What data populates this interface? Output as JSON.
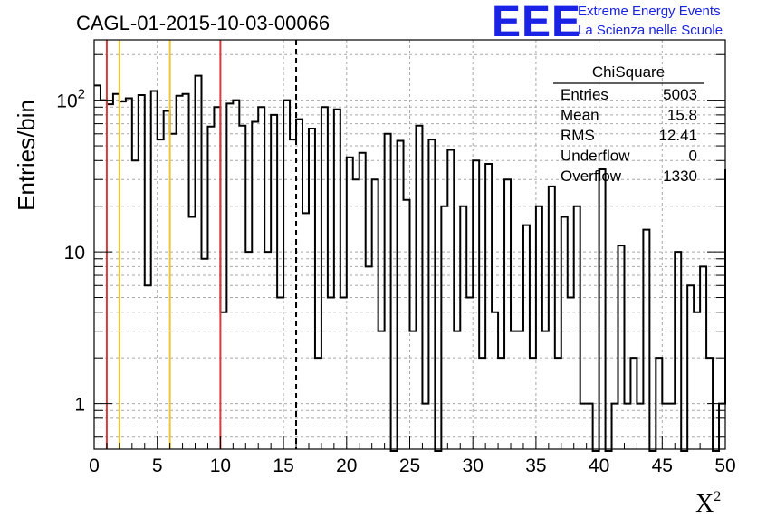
{
  "header": {
    "title": "CAGL-01-2015-10-03-00066",
    "logo_text": "EEE",
    "logo_line1": "Extreme Energy Events",
    "logo_line2": "La Scienza nelle Scuole"
  },
  "stats_box": {
    "name": "ChiSquare",
    "rows": [
      {
        "label": "Entries",
        "value": "5003"
      },
      {
        "label": "Mean",
        "value": "15.8"
      },
      {
        "label": "RMS",
        "value": "12.41"
      },
      {
        "label": "Underflow",
        "value": "0"
      },
      {
        "label": "Overflow",
        "value": "1330"
      }
    ]
  },
  "chart_data": {
    "type": "histogram",
    "title": "CAGL-01-2015-10-03-00066",
    "xlabel": "X",
    "xlabel_superscript": "2",
    "ylabel": "Entries/bin",
    "xlim": [
      0,
      50
    ],
    "ylim": [
      0.5,
      250
    ],
    "yscale": "log",
    "grid": true,
    "bin_width": 0.5,
    "x_ticks": [
      "0",
      "5",
      "10",
      "15",
      "20",
      "25",
      "30",
      "35",
      "40",
      "45",
      "50"
    ],
    "y_ticks": [
      {
        "value": 1,
        "label": "1"
      },
      {
        "value": 10,
        "label": "10"
      },
      {
        "value": 100,
        "label": "10",
        "sup": "2"
      }
    ],
    "counts": [
      125,
      100,
      94,
      110,
      98,
      103,
      40,
      108,
      6,
      115,
      55,
      85,
      60,
      107,
      110,
      17,
      145,
      9,
      67,
      90,
      4,
      95,
      100,
      68,
      10,
      72,
      90,
      10,
      80,
      5,
      100,
      55,
      75,
      18,
      65,
      2,
      90,
      5,
      87,
      5,
      42,
      30,
      45,
      8,
      30,
      3,
      60,
      0,
      54,
      22,
      3,
      68,
      1,
      55,
      0,
      20,
      47,
      3,
      20,
      5,
      40,
      2,
      38,
      4,
      2,
      30,
      3,
      3,
      15,
      2,
      20,
      3,
      27,
      2,
      17,
      5,
      20,
      1,
      1,
      0,
      35,
      0,
      1,
      11,
      1,
      2,
      1,
      14,
      0,
      2,
      1,
      1,
      10,
      0,
      6,
      4,
      8,
      2,
      0,
      1,
      35
    ],
    "vlines": [
      {
        "x": 1,
        "color": "#d93a3a",
        "style": "solid"
      },
      {
        "x": 2,
        "color": "#f0c430",
        "style": "solid"
      },
      {
        "x": 6,
        "color": "#f0c430",
        "style": "solid"
      },
      {
        "x": 10,
        "color": "#d93a3a",
        "style": "solid"
      },
      {
        "x": 16,
        "color": "#000000",
        "style": "dashed"
      }
    ],
    "colors": {
      "histogram": "#000000",
      "grid": "#a9a9a9",
      "logo": "#1a22e6"
    }
  }
}
